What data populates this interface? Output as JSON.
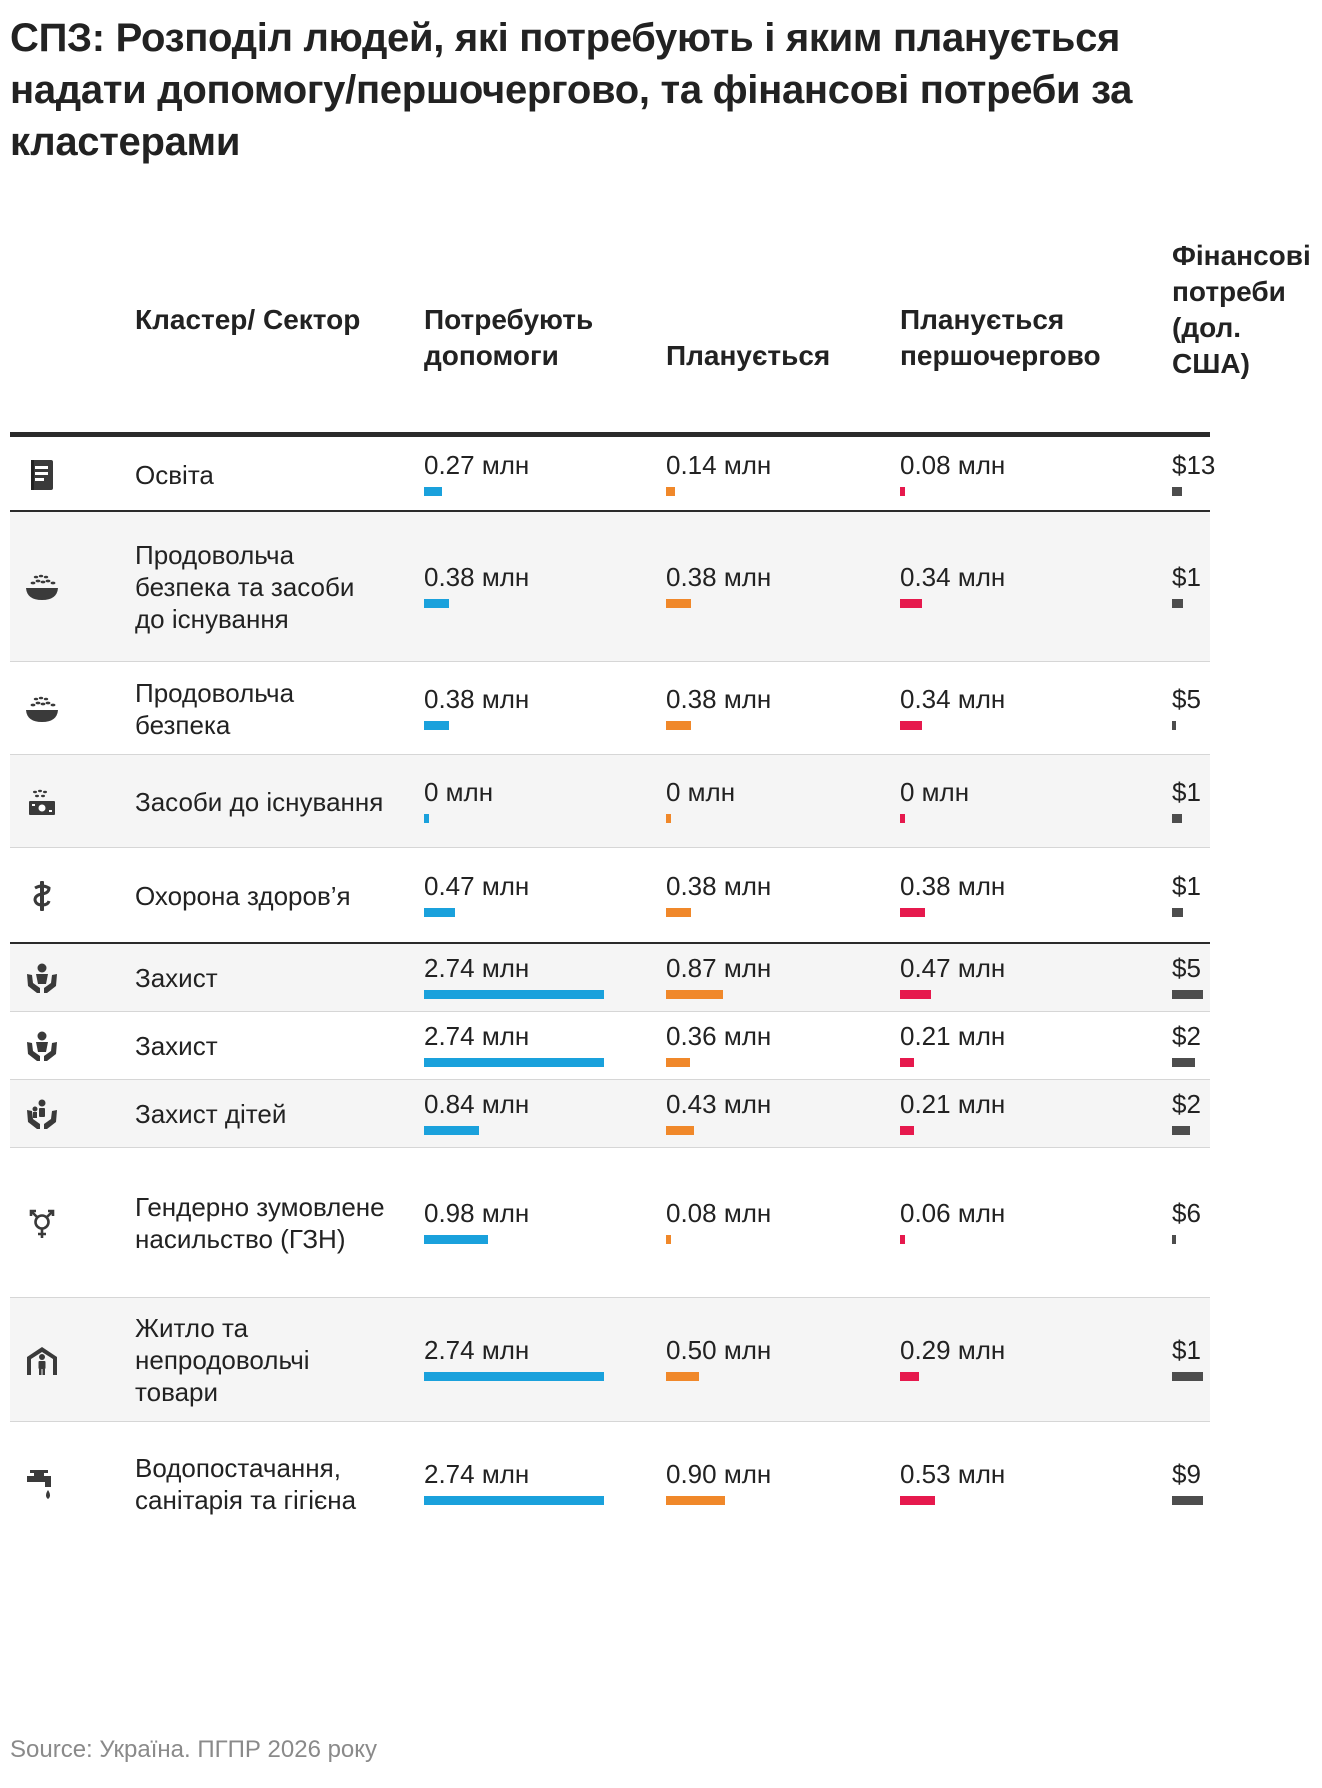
{
  "title": "СПЗ: Розподіл людей, які потребують і яким планується надати допомогу/першочергово, та фінансові потреби за кластерами",
  "source": "Source: Україна. ПГПР 2026 року",
  "colors": {
    "need": "#1aa1dc",
    "planned": "#f0882a",
    "priority": "#e6194d",
    "finance": "#4d4d4d"
  },
  "headers": {
    "cluster": "Кластер/ Сектор",
    "need": "Потребують допомоги",
    "planned": "Планується",
    "priority": "Планується першочергово",
    "finance": "Фінансові потреби (дол. США)"
  },
  "chart_data": {
    "type": "table",
    "title": "СПЗ: Розподіл людей, які потребують і яким планується надати допомогу/першочергово, та фінансові потреби за кластерами",
    "unit": "млн",
    "scale_max": 2.74,
    "rows": [
      {
        "cluster": "Освіта",
        "icon": "book-icon",
        "need": 0.27,
        "planned": 0.14,
        "priority": 0.08,
        "need_label": "0.27 млн",
        "planned_label": "0.14 млн",
        "priority_label": "0.08 млн",
        "finance_label": "$13",
        "finance_ratio": 0.2
      },
      {
        "cluster": "Продовольча безпека та засоби до існування",
        "icon": "food-bowl-icon",
        "need": 0.38,
        "planned": 0.38,
        "priority": 0.34,
        "need_label": "0.38 млн",
        "planned_label": "0.38 млн",
        "priority_label": "0.34 млн",
        "finance_label": "$1",
        "finance_ratio": 0.22
      },
      {
        "cluster": "Продовольча безпека",
        "icon": "food-bowl-icon",
        "need": 0.38,
        "planned": 0.38,
        "priority": 0.34,
        "need_label": "0.38 млн",
        "planned_label": "0.38 млн",
        "priority_label": "0.34 млн",
        "finance_label": "$5",
        "finance_ratio": 0.05
      },
      {
        "cluster": "Засоби до існування",
        "icon": "livelihood-icon",
        "need": 0,
        "planned": 0,
        "priority": 0,
        "need_label": "0 млн",
        "planned_label": "0 млн",
        "priority_label": "0 млн",
        "finance_label": "$1",
        "finance_ratio": 0.2
      },
      {
        "cluster": "Охорона здоров’я",
        "icon": "health-icon",
        "need": 0.47,
        "planned": 0.38,
        "priority": 0.38,
        "need_label": "0.47 млн",
        "planned_label": "0.38 млн",
        "priority_label": "0.38 млн",
        "finance_label": "$1",
        "finance_ratio": 0.22
      },
      {
        "cluster": "Захист",
        "icon": "protection-icon",
        "need": 2.74,
        "planned": 0.87,
        "priority": 0.47,
        "need_label": "2.74 млн",
        "planned_label": "0.87 млн",
        "priority_label": "0.47 млн",
        "finance_label": "$5",
        "finance_ratio": 0.62
      },
      {
        "cluster": "Захист",
        "icon": "protection-icon",
        "need": 2.74,
        "planned": 0.36,
        "priority": 0.21,
        "need_label": "2.74 млн",
        "planned_label": "0.36 млн",
        "priority_label": "0.21 млн",
        "finance_label": "$2",
        "finance_ratio": 0.46
      },
      {
        "cluster": "Захист дітей",
        "icon": "child-protection-icon",
        "need": 0.84,
        "planned": 0.43,
        "priority": 0.21,
        "need_label": "0.84 млн",
        "planned_label": "0.43 млн",
        "priority_label": "0.21 млн",
        "finance_label": "$2",
        "finance_ratio": 0.36
      },
      {
        "cluster": "Гендерно зумовлене насильство (ГЗН)",
        "icon": "gender-icon",
        "need": 0.98,
        "planned": 0.08,
        "priority": 0.06,
        "need_label": "0.98 млн",
        "planned_label": "0.08 млн",
        "priority_label": "0.06 млн",
        "finance_label": "$6",
        "finance_ratio": 0.05
      },
      {
        "cluster": "Житло та непродовольчі товари",
        "icon": "shelter-icon",
        "need": 2.74,
        "planned": 0.5,
        "priority": 0.29,
        "need_label": "2.74 млн",
        "planned_label": "0.50 млн",
        "priority_label": "0.29 млн",
        "finance_label": "$1",
        "finance_ratio": 0.62
      },
      {
        "cluster": "Водопостачання, санітарія та гігієна",
        "icon": "water-tap-icon",
        "need": 2.74,
        "planned": 0.9,
        "priority": 0.53,
        "need_label": "2.74 млн",
        "planned_label": "0.90 млн",
        "priority_label": "0.53 млн",
        "finance_label": "$9",
        "finance_ratio": 0.62
      }
    ]
  }
}
